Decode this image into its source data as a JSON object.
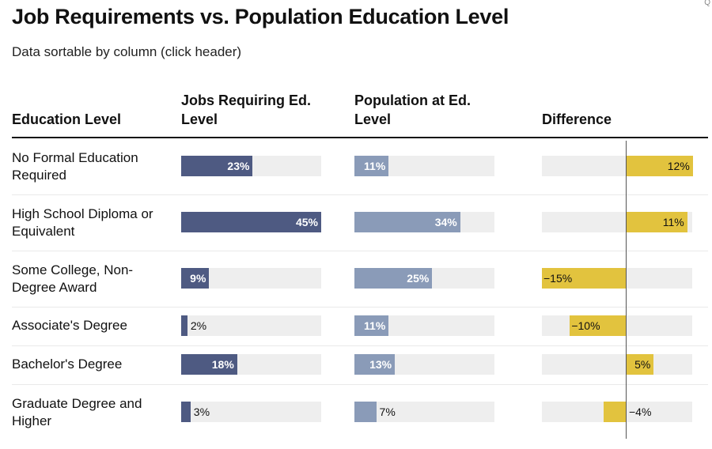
{
  "title": "Job Requirements vs. Population Education Level",
  "subtitle": "Data sortable by column (click header)",
  "corner_glyph": "Q",
  "columns": {
    "label": "Education Level",
    "jobs": "Jobs Requiring Ed. Level",
    "population": "Population at Ed. Level",
    "difference": "Difference"
  },
  "colors": {
    "jobs": "#4e5a82",
    "population": "#8a9bb8",
    "difference": "#e2c33e",
    "track": "#eeeeee"
  },
  "chart_data": {
    "type": "table",
    "categories": [
      "No Formal Education Required",
      "High School Diploma or Equivalent",
      "Some College, Non-Degree Award",
      "Associate's Degree",
      "Bachelor's Degree",
      "Graduate Degree and Higher"
    ],
    "series": [
      {
        "name": "Jobs Requiring Ed. Level",
        "values": [
          23,
          45,
          9,
          2,
          18,
          3
        ],
        "labels": [
          "23%",
          "45%",
          "9%",
          "2%",
          "18%",
          "3%"
        ]
      },
      {
        "name": "Population at Ed. Level",
        "values": [
          11,
          34,
          25,
          11,
          13,
          7
        ],
        "labels": [
          "11%",
          "34%",
          "25%",
          "11%",
          "13%",
          "7%"
        ]
      },
      {
        "name": "Difference",
        "values": [
          12,
          11,
          -15,
          -10,
          5,
          -4
        ],
        "labels": [
          "12%",
          "11%",
          "−15%",
          "−10%",
          "5%",
          "−4%"
        ]
      }
    ],
    "bar_scale_max": 45,
    "difference_range": [
      -15,
      12
    ]
  }
}
